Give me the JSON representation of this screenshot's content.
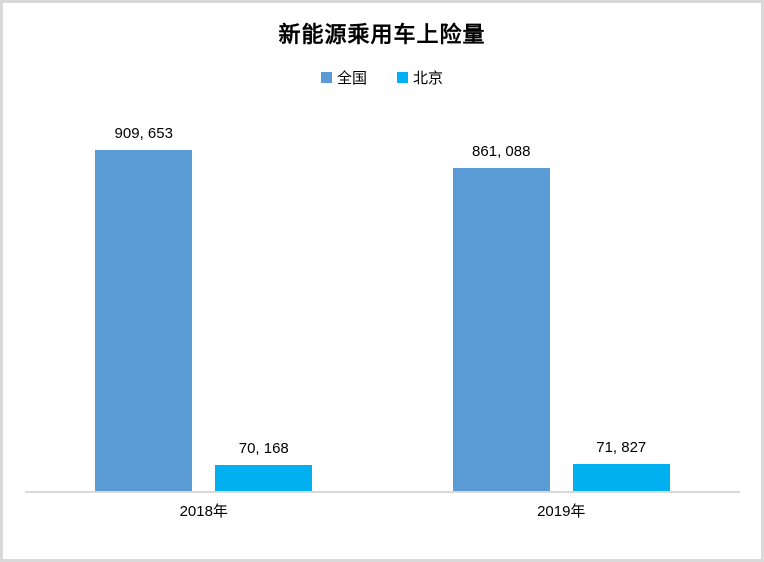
{
  "chart_data": {
    "type": "bar",
    "title": "新能源乘用车上险量",
    "categories": [
      "2018年",
      "2019年"
    ],
    "series": [
      {
        "name": "全国",
        "color": "#5B9BD5",
        "values": [
          909653,
          861088
        ],
        "value_labels": [
          "909, 653",
          "861, 088"
        ]
      },
      {
        "name": "北京",
        "color": "#00B0F0",
        "values": [
          70168,
          71827
        ],
        "value_labels": [
          "70, 168",
          "71, 827"
        ]
      }
    ],
    "ylim": [
      0,
      1000000
    ],
    "grid": false,
    "legend_position": "top",
    "axis_color": "#D9D9D9",
    "border_color": "#D9D9D9",
    "background": "#FFFFFF"
  }
}
